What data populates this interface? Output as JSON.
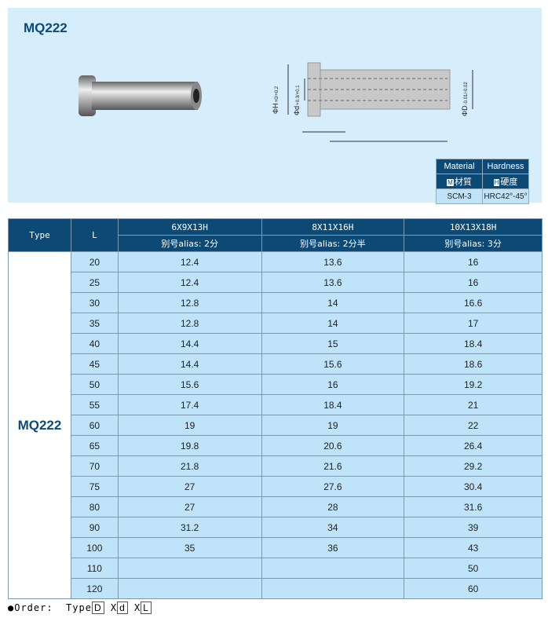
{
  "product": {
    "title": "MQ222"
  },
  "drawing": {
    "labels": {
      "H": "ΦH",
      "H_tol": "+0/+0.2",
      "d": "Φd",
      "d_tol": "+0.3/+0.1",
      "D": "ΦD",
      "D_tol": "-0.01/-0.02"
    }
  },
  "material": {
    "h1": "Material",
    "h2": "Hardness",
    "c1": "材質",
    "c2": "硬度",
    "b1": "M",
    "b2": "H",
    "v1": "SCM-3",
    "v2": "HRC42°-45°"
  },
  "table": {
    "type_header": "Type",
    "l_header": "L",
    "type": "MQ222",
    "cols": [
      {
        "size": "6X9X13H",
        "alias": "别号alias: 2分"
      },
      {
        "size": "8X11X16H",
        "alias": "别号alias: 2分半"
      },
      {
        "size": "10X13X18H",
        "alias": "别号alias: 3分"
      }
    ],
    "rows": [
      [
        "20",
        "12.4",
        "13.6",
        "16"
      ],
      [
        "25",
        "12.4",
        "13.6",
        "16"
      ],
      [
        "30",
        "12.8",
        "14",
        "16.6"
      ],
      [
        "35",
        "12.8",
        "14",
        "17"
      ],
      [
        "40",
        "14.4",
        "15",
        "18.4"
      ],
      [
        "45",
        "14.4",
        "15.6",
        "18.6"
      ],
      [
        "50",
        "15.6",
        "16",
        "19.2"
      ],
      [
        "55",
        "17.4",
        "18.4",
        "21"
      ],
      [
        "60",
        "19",
        "19",
        "22"
      ],
      [
        "65",
        "19.8",
        "20.6",
        "26.4"
      ],
      [
        "70",
        "21.8",
        "21.6",
        "29.2"
      ],
      [
        "75",
        "27",
        "27.6",
        "30.4"
      ],
      [
        "80",
        "27",
        "28",
        "31.6"
      ],
      [
        "90",
        "31.2",
        "34",
        "39"
      ],
      [
        "100",
        "35",
        "36",
        "43"
      ],
      [
        "110",
        "",
        "",
        "50"
      ],
      [
        "120",
        "",
        "",
        "60"
      ]
    ]
  },
  "order": {
    "label": "●Order:",
    "type": "Type",
    "D": "D",
    "x1": "X",
    "d": "d",
    "x2": "X",
    "L": "L"
  }
}
